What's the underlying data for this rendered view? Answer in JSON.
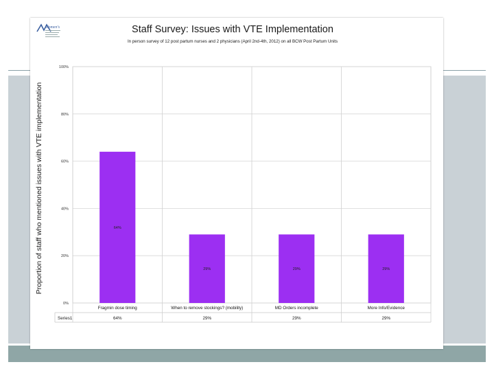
{
  "slide": {
    "logo_text": "Women's"
  },
  "chart_data": {
    "type": "bar",
    "title": "Staff Survey: Issues with VTE Implementation",
    "subtitle": "In person survey of 12 post partum nurses and 2 physicians (April 2nd-4th, 2012) on all BCW Post Partum Units",
    "ylabel": "Proportion of staff who mentioned issues with VTE implementation",
    "xlabel": "",
    "ylim": [
      0,
      100
    ],
    "yticks": [
      "0%",
      "20%",
      "40%",
      "60%",
      "80%",
      "100%"
    ],
    "categories": [
      "Fragmin dose timing",
      "When to remove stockings? (mobility)",
      "MD Orders incomplete",
      "More Info/Evidence"
    ],
    "series": [
      {
        "name": "Series1",
        "values": [
          64,
          29,
          29,
          29
        ],
        "labels": [
          "64%",
          "29%",
          "29%",
          "29%"
        ],
        "color": "#9c2ff2"
      }
    ],
    "grid": true,
    "legend": "data-table"
  }
}
